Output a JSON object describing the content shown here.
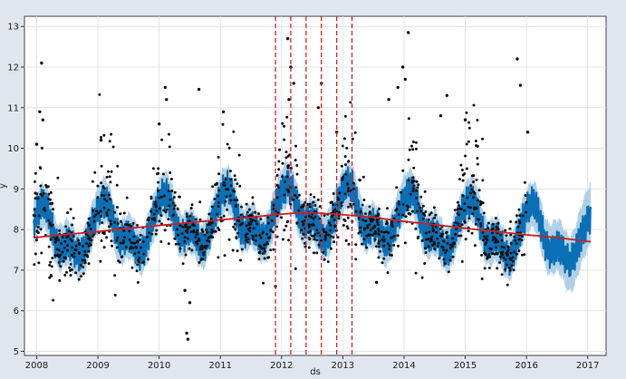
{
  "chart_data": {
    "type": "line",
    "xlabel": "ds",
    "ylabel": "y",
    "xlim": [
      2007.8,
      2017.3
    ],
    "ylim": [
      4.9,
      13.25
    ],
    "grid": true,
    "x_ticks": [
      2008,
      2009,
      2010,
      2011,
      2012,
      2013,
      2014,
      2015,
      2016,
      2017
    ],
    "x_tick_labels": [
      "2008",
      "2009",
      "2010",
      "2011",
      "2012",
      "2013",
      "2014",
      "2015",
      "2016",
      "2017"
    ],
    "y_ticks": [
      5,
      6,
      7,
      8,
      9,
      10,
      11,
      12,
      13
    ],
    "y_tick_labels": [
      "5",
      "6",
      "7",
      "8",
      "9",
      "10",
      "11",
      "12",
      "13"
    ],
    "colors": {
      "observed": "#111111",
      "forecast": "#0a6fb5",
      "uncertainty": "#a8cbe6",
      "trend": "#cc2222",
      "changepoint": "#dd2222"
    },
    "trend": {
      "x": [
        2007.95,
        2008.5,
        2009.0,
        2009.5,
        2010.0,
        2010.5,
        2011.0,
        2011.5,
        2011.9,
        2012.4,
        2012.9,
        2013.5,
        2014.0,
        2014.5,
        2015.0,
        2015.5,
        2016.0,
        2016.5,
        2017.05
      ],
      "y": [
        7.8,
        7.88,
        7.95,
        8.03,
        8.1,
        8.17,
        8.24,
        8.3,
        8.37,
        8.42,
        8.38,
        8.3,
        8.2,
        8.12,
        8.03,
        7.95,
        7.87,
        7.8,
        7.7
      ]
    },
    "changepoints": [
      2011.9,
      2012.15,
      2012.4,
      2012.65,
      2012.9,
      2013.15
    ],
    "observed_range": [
      2007.95,
      2016.0
    ],
    "forecast_range": [
      2007.95,
      2017.05
    ],
    "seasonality": {
      "peak_offset": 0.1,
      "amplitude": 0.75,
      "interval_half_width": 0.55
    },
    "outliers": [
      {
        "x": 2008.08,
        "y": 12.1
      },
      {
        "x": 2008.05,
        "y": 10.9
      },
      {
        "x": 2008.1,
        "y": 10.7
      },
      {
        "x": 2008.0,
        "y": 10.1
      },
      {
        "x": 2010.1,
        "y": 11.5
      },
      {
        "x": 2010.12,
        "y": 11.2
      },
      {
        "x": 2010.0,
        "y": 10.6
      },
      {
        "x": 2010.65,
        "y": 11.45
      },
      {
        "x": 2011.05,
        "y": 10.9
      },
      {
        "x": 2010.45,
        "y": 5.45
      },
      {
        "x": 2010.47,
        "y": 5.3
      },
      {
        "x": 2010.5,
        "y": 6.2
      },
      {
        "x": 2010.42,
        "y": 6.5
      },
      {
        "x": 2009.05,
        "y": 10.2
      },
      {
        "x": 2012.1,
        "y": 12.7
      },
      {
        "x": 2012.15,
        "y": 12.0
      },
      {
        "x": 2012.2,
        "y": 11.6
      },
      {
        "x": 2012.12,
        "y": 11.2
      },
      {
        "x": 2011.9,
        "y": 6.6
      },
      {
        "x": 2012.65,
        "y": 11.6
      },
      {
        "x": 2012.6,
        "y": 11.0
      },
      {
        "x": 2012.9,
        "y": 10.4
      },
      {
        "x": 2014.07,
        "y": 12.85
      },
      {
        "x": 2013.98,
        "y": 12.0
      },
      {
        "x": 2014.02,
        "y": 11.7
      },
      {
        "x": 2013.9,
        "y": 11.5
      },
      {
        "x": 2013.75,
        "y": 11.2
      },
      {
        "x": 2014.7,
        "y": 11.3
      },
      {
        "x": 2014.6,
        "y": 10.8
      },
      {
        "x": 2015.0,
        "y": 10.7
      },
      {
        "x": 2015.85,
        "y": 12.2
      },
      {
        "x": 2015.9,
        "y": 11.55
      },
      {
        "x": 2016.02,
        "y": 10.4
      },
      {
        "x": 2013.55,
        "y": 6.7
      }
    ]
  }
}
